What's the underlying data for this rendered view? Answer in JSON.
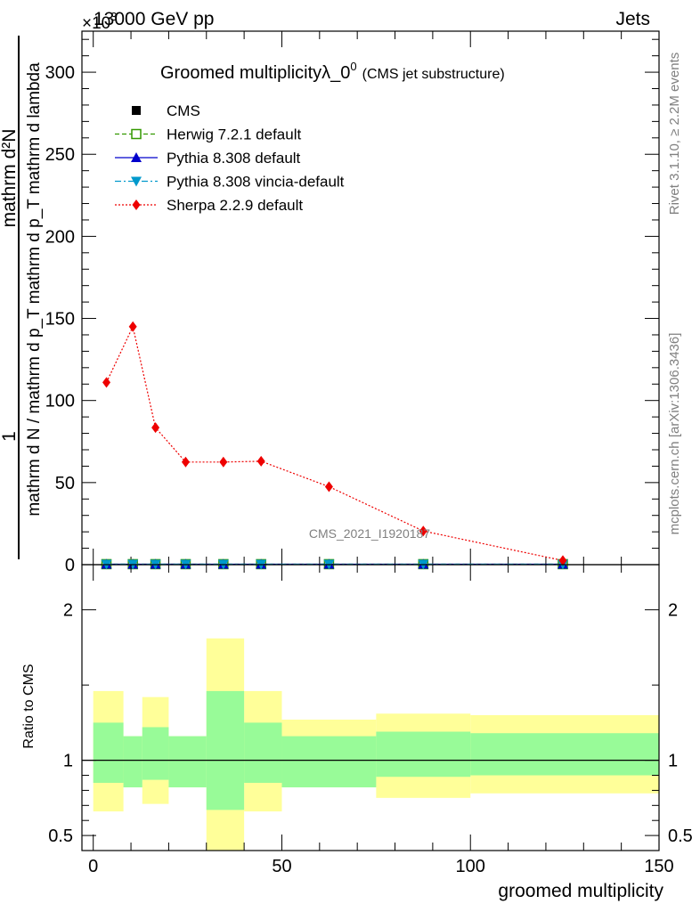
{
  "header": {
    "left_label": "13000 GeV pp",
    "right_label": "Jets",
    "exponent_label": "×10",
    "exponent_power": "3"
  },
  "side_labels": {
    "rivet": "Rivet 3.1.10, ≥ 2.2M events",
    "site": "mcplots.cern.ch [arXiv:1306.3436]"
  },
  "watermark": "CMS_2021_I1920187",
  "chart_data": [
    {
      "type": "line",
      "title": "Groomed multiplicity",
      "title_symbol": "λ_0",
      "title_power": "0",
      "subtitle": "(CMS jet substructure)",
      "xlabel": "",
      "ylabel_numerator": "mathrm d²N",
      "ylabel_numerator_prefix": "1",
      "ylabel_denominator": "mathrm d N / mathrm d p_T mathrm d p_T mathrm d lambda",
      "xlim": [
        -3,
        150
      ],
      "ylim": [
        0,
        325
      ],
      "y_scale_exponent": 3,
      "yticks": [
        0,
        50,
        100,
        150,
        200,
        250,
        300
      ],
      "ytick_labels": [
        "0",
        "50",
        "100",
        "150",
        "200",
        "250",
        "300"
      ],
      "legend": [
        {
          "name": "CMS",
          "color": "#000000",
          "marker": "square",
          "line": "none"
        },
        {
          "name": "Herwig 7.2.1 default",
          "color": "#339900",
          "marker": "open-square",
          "line": "dashed"
        },
        {
          "name": "Pythia 8.308 default",
          "color": "#0000cc",
          "marker": "triangle-up",
          "line": "solid"
        },
        {
          "name": "Pythia 8.308 vincia-default",
          "color": "#0099cc",
          "marker": "triangle-down",
          "line": "dashdot"
        },
        {
          "name": "Sherpa 2.2.9 default",
          "color": "#ee0000",
          "marker": "diamond",
          "line": "dotted"
        }
      ],
      "x": [
        3.5,
        10.5,
        16.5,
        24.5,
        34.5,
        44.5,
        62.5,
        87.5,
        124.5
      ],
      "series": [
        {
          "name": "CMS",
          "values": [
            0.3,
            0.3,
            0.3,
            0.3,
            0.3,
            0.3,
            0.3,
            0.3,
            0.3
          ]
        },
        {
          "name": "Herwig 7.2.1 default",
          "values": [
            0.3,
            0.3,
            0.3,
            0.3,
            0.3,
            0.3,
            0.3,
            0.3,
            0.3
          ]
        },
        {
          "name": "Pythia 8.308 default",
          "values": [
            0.3,
            0.3,
            0.3,
            0.3,
            0.3,
            0.3,
            0.3,
            0.3,
            0.3
          ]
        },
        {
          "name": "Pythia 8.308 vincia-default",
          "values": [
            0.3,
            0.3,
            0.3,
            0.3,
            0.3,
            0.3,
            0.3,
            0.3,
            0.3
          ]
        },
        {
          "name": "Sherpa 2.2.9 default",
          "values": [
            111,
            145,
            83.5,
            62.5,
            62.5,
            63,
            47.5,
            20.5,
            2.5
          ]
        }
      ]
    },
    {
      "type": "area",
      "title": "",
      "xlabel": "groomed multiplicity",
      "ylabel": "Ratio to CMS",
      "xlim": [
        -3,
        150
      ],
      "ylim": [
        0.4,
        2.3
      ],
      "xticks": [
        0,
        50,
        100,
        150
      ],
      "xtick_labels": [
        "0",
        "50",
        "100",
        "150"
      ],
      "yticks": [
        0.5,
        1,
        2
      ],
      "ytick_labels": [
        "0.5",
        "1",
        "2"
      ],
      "reference_line": 1,
      "bins": [
        {
          "low": 0,
          "high": 8,
          "inner": [
            0.85,
            1.25
          ],
          "outer": [
            0.66,
            1.46
          ]
        },
        {
          "low": 8,
          "high": 13,
          "inner": [
            0.82,
            1.16
          ],
          "outer": [
            0.82,
            1.16
          ]
        },
        {
          "low": 13,
          "high": 20,
          "inner": [
            0.87,
            1.22
          ],
          "outer": [
            0.71,
            1.42
          ]
        },
        {
          "low": 20,
          "high": 30,
          "inner": [
            0.82,
            1.16
          ],
          "outer": [
            0.82,
            1.16
          ]
        },
        {
          "low": 30,
          "high": 40,
          "inner": [
            0.67,
            1.46
          ],
          "outer": [
            0.4,
            1.81
          ]
        },
        {
          "low": 40,
          "high": 50,
          "inner": [
            0.85,
            1.25
          ],
          "outer": [
            0.66,
            1.46
          ]
        },
        {
          "low": 50,
          "high": 75,
          "inner": [
            0.82,
            1.16
          ],
          "outer": [
            0.82,
            1.27
          ]
        },
        {
          "low": 75,
          "high": 100,
          "inner": [
            0.89,
            1.19
          ],
          "outer": [
            0.75,
            1.31
          ]
        },
        {
          "low": 100,
          "high": 150,
          "inner": [
            0.9,
            1.18
          ],
          "outer": [
            0.78,
            1.3
          ]
        }
      ],
      "band_colors": {
        "inner": "#98fb98",
        "outer": "#ffff99"
      }
    }
  ]
}
